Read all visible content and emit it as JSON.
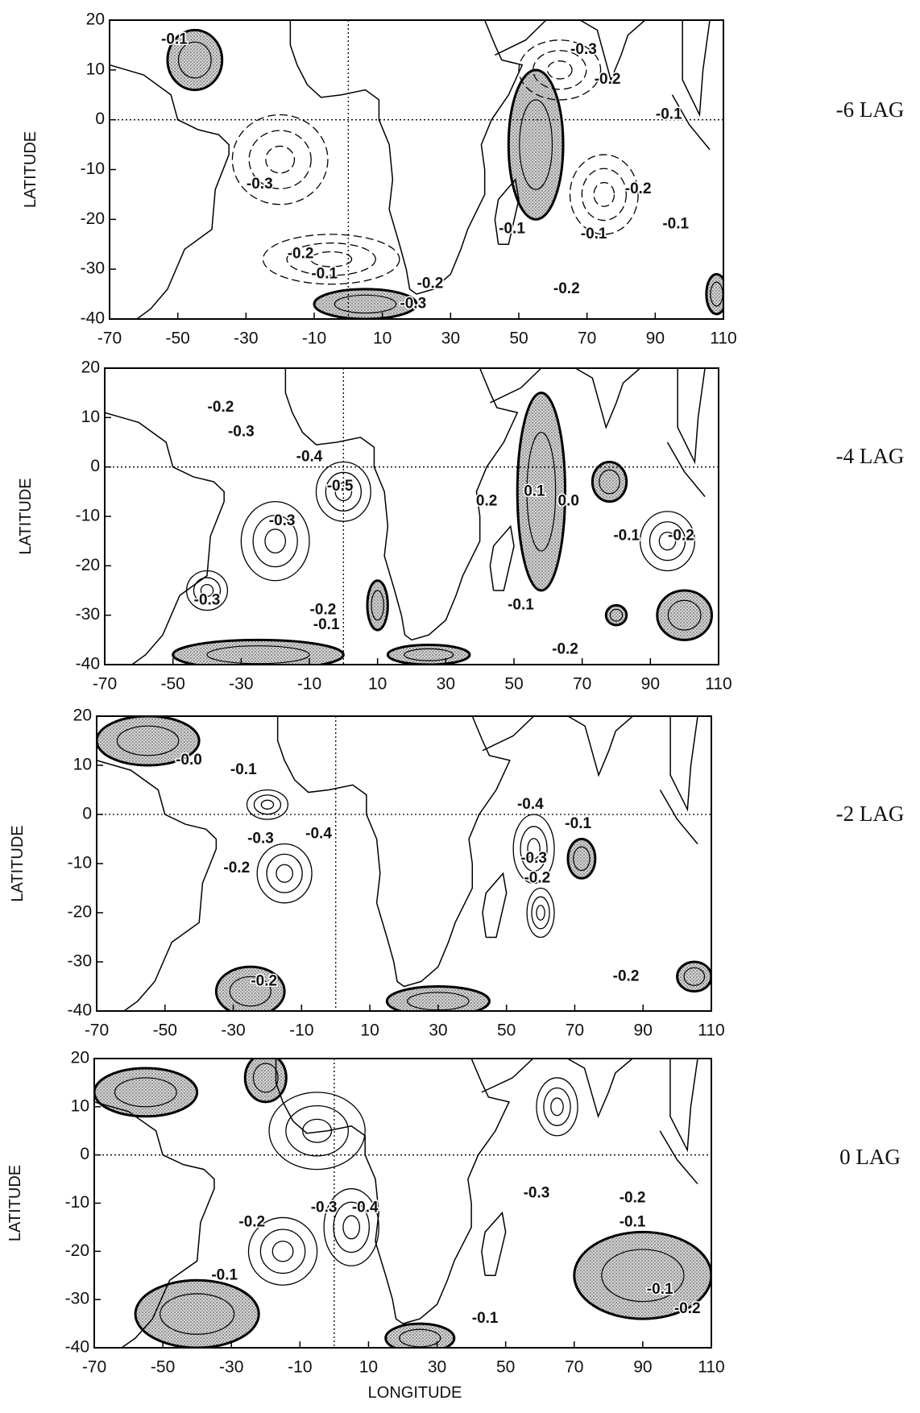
{
  "chart_data": [
    {
      "type": "contour",
      "title": "-6 LAG",
      "ylabel": "LATITUDE",
      "xlim": [
        -70,
        110
      ],
      "ylim": [
        -40,
        20
      ],
      "xticks": [
        -70,
        -50,
        -30,
        -10,
        10,
        30,
        50,
        70,
        90,
        110
      ],
      "yticks": [
        -40,
        -30,
        -20,
        -10,
        0,
        10,
        20
      ],
      "annotations": [
        "-0.1",
        "-0.3",
        "-0.2",
        "-0.1",
        "-0.3",
        "-0.2",
        "-0.1",
        "-0.1",
        "-0.1",
        "-0.2",
        "-0.1",
        "-0.2",
        "-0.3",
        "-0.2"
      ]
    },
    {
      "type": "contour",
      "title": "-4 LAG",
      "ylabel": "LATITUDE",
      "xlim": [
        -70,
        110
      ],
      "ylim": [
        -40,
        20
      ],
      "xticks": [
        -70,
        -50,
        -30,
        -10,
        10,
        30,
        50,
        70,
        90,
        110
      ],
      "yticks": [
        -40,
        -30,
        -20,
        -10,
        0,
        10,
        20
      ],
      "annotations": [
        "-0.2",
        "-0.3",
        "-0.4",
        "-0.5",
        "-0.3",
        "0.2",
        "0.1",
        "0.0",
        "-0.1",
        "-0.2",
        "-0.3",
        "-0.2",
        "-0.1",
        "-0.1",
        "-0.2"
      ]
    },
    {
      "type": "contour",
      "title": "-2 LAG",
      "ylabel": "LATITUDE",
      "xlim": [
        -70,
        110
      ],
      "ylim": [
        -40,
        20
      ],
      "xticks": [
        -70,
        -50,
        -30,
        -10,
        10,
        30,
        50,
        70,
        90,
        110
      ],
      "yticks": [
        -40,
        -30,
        -20,
        -10,
        0,
        10,
        20
      ],
      "annotations": [
        "-0.0",
        "-0.1",
        "-0.4",
        "-0.1",
        "-0.3",
        "-0.4",
        "-0.2",
        "-0.3",
        "-0.2",
        "-0.2",
        "-0.2"
      ]
    },
    {
      "type": "contour",
      "title": "0 LAG",
      "ylabel": "LATITUDE",
      "xlabel": "LONGITUDE",
      "xlim": [
        -70,
        110
      ],
      "ylim": [
        -40,
        20
      ],
      "xticks": [
        -70,
        -50,
        -30,
        -10,
        10,
        30,
        50,
        70,
        90,
        110
      ],
      "yticks": [
        -40,
        -30,
        -20,
        -10,
        0,
        10,
        20
      ],
      "annotations": [
        "-0.3",
        "-0.4",
        "-0.2",
        "-0.3",
        "-0.2",
        "-0.1",
        "-0.1",
        "-0.1",
        "-0.2",
        "-0.1"
      ]
    }
  ]
}
